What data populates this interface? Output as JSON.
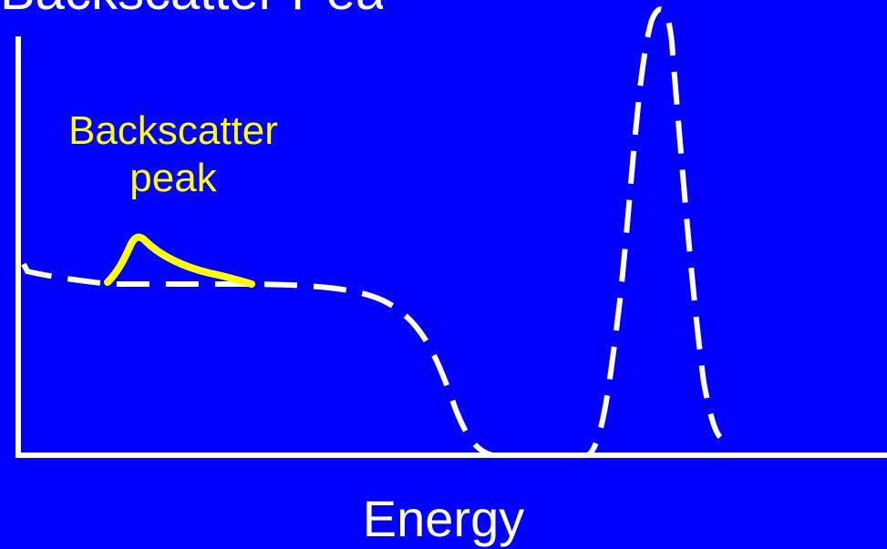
{
  "title": "Backscatter Peak",
  "annotation_line1": "Backscatter",
  "annotation_line2": "peak",
  "x_axis_label": "Energy",
  "colors": {
    "background": "#0000ff",
    "axis": "#ffffff",
    "spectrum": "#ffffff",
    "highlight": "#ffff00"
  }
}
